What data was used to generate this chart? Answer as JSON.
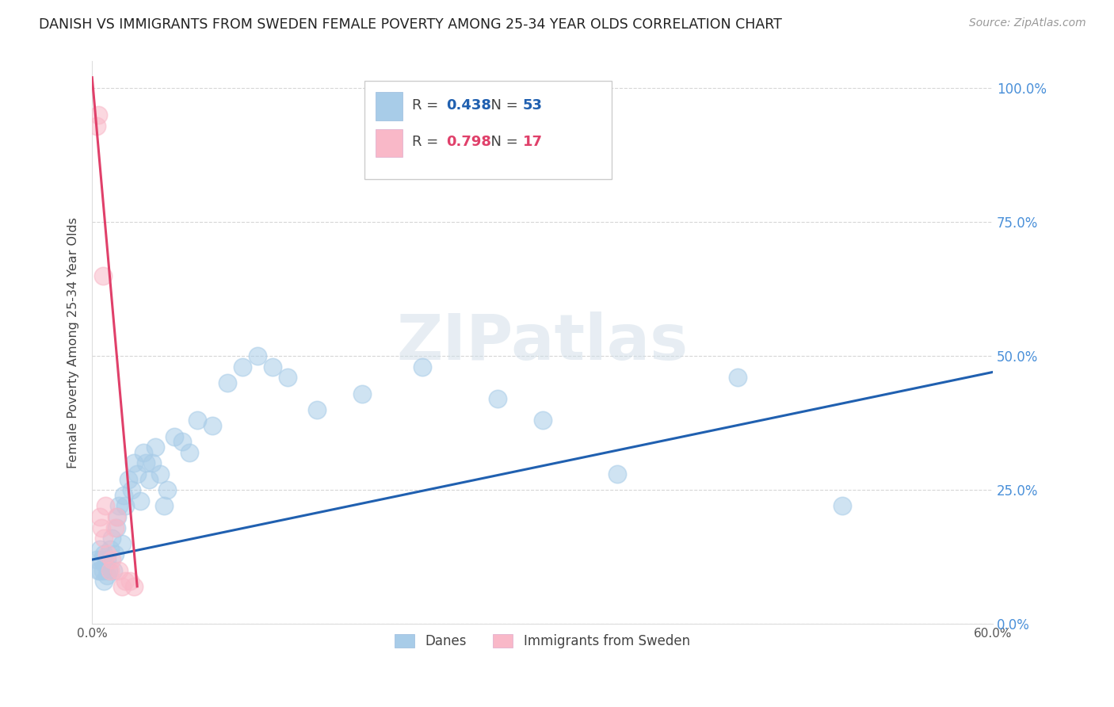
{
  "title": "DANISH VS IMMIGRANTS FROM SWEDEN FEMALE POVERTY AMONG 25-34 YEAR OLDS CORRELATION CHART",
  "source": "Source: ZipAtlas.com",
  "ylabel": "Female Poverty Among 25-34 Year Olds",
  "xlim": [
    0.0,
    0.6
  ],
  "ylim": [
    0.0,
    1.05
  ],
  "blue_R": 0.438,
  "blue_N": 53,
  "pink_R": 0.798,
  "pink_N": 17,
  "blue_color": "#a8cce8",
  "pink_color": "#f9b8c8",
  "blue_line_color": "#2060b0",
  "pink_line_color": "#e0406a",
  "danes_x": [
    0.003,
    0.004,
    0.005,
    0.005,
    0.006,
    0.007,
    0.008,
    0.008,
    0.009,
    0.01,
    0.01,
    0.011,
    0.012,
    0.013,
    0.014,
    0.015,
    0.016,
    0.017,
    0.018,
    0.02,
    0.021,
    0.022,
    0.024,
    0.026,
    0.028,
    0.03,
    0.032,
    0.034,
    0.036,
    0.038,
    0.04,
    0.042,
    0.045,
    0.048,
    0.05,
    0.055,
    0.06,
    0.065,
    0.07,
    0.08,
    0.09,
    0.1,
    0.11,
    0.12,
    0.13,
    0.15,
    0.18,
    0.22,
    0.27,
    0.3,
    0.35,
    0.43,
    0.5
  ],
  "danes_y": [
    0.12,
    0.1,
    0.14,
    0.1,
    0.12,
    0.1,
    0.08,
    0.13,
    0.11,
    0.09,
    0.12,
    0.1,
    0.14,
    0.16,
    0.1,
    0.13,
    0.18,
    0.2,
    0.22,
    0.15,
    0.24,
    0.22,
    0.27,
    0.25,
    0.3,
    0.28,
    0.23,
    0.32,
    0.3,
    0.27,
    0.3,
    0.33,
    0.28,
    0.22,
    0.25,
    0.35,
    0.34,
    0.32,
    0.38,
    0.37,
    0.45,
    0.48,
    0.5,
    0.48,
    0.46,
    0.4,
    0.43,
    0.48,
    0.42,
    0.38,
    0.28,
    0.46,
    0.22
  ],
  "sweden_x": [
    0.003,
    0.004,
    0.005,
    0.006,
    0.007,
    0.008,
    0.009,
    0.01,
    0.012,
    0.013,
    0.015,
    0.016,
    0.018,
    0.02,
    0.022,
    0.025,
    0.028
  ],
  "sweden_y": [
    0.93,
    0.95,
    0.2,
    0.18,
    0.65,
    0.16,
    0.22,
    0.13,
    0.1,
    0.12,
    0.18,
    0.2,
    0.1,
    0.07,
    0.08,
    0.08,
    0.07
  ],
  "blue_trend_x": [
    0.0,
    0.6
  ],
  "blue_trend_y": [
    0.12,
    0.47
  ],
  "pink_trend_x": [
    0.0,
    0.03
  ],
  "pink_trend_y": [
    1.02,
    0.07
  ]
}
